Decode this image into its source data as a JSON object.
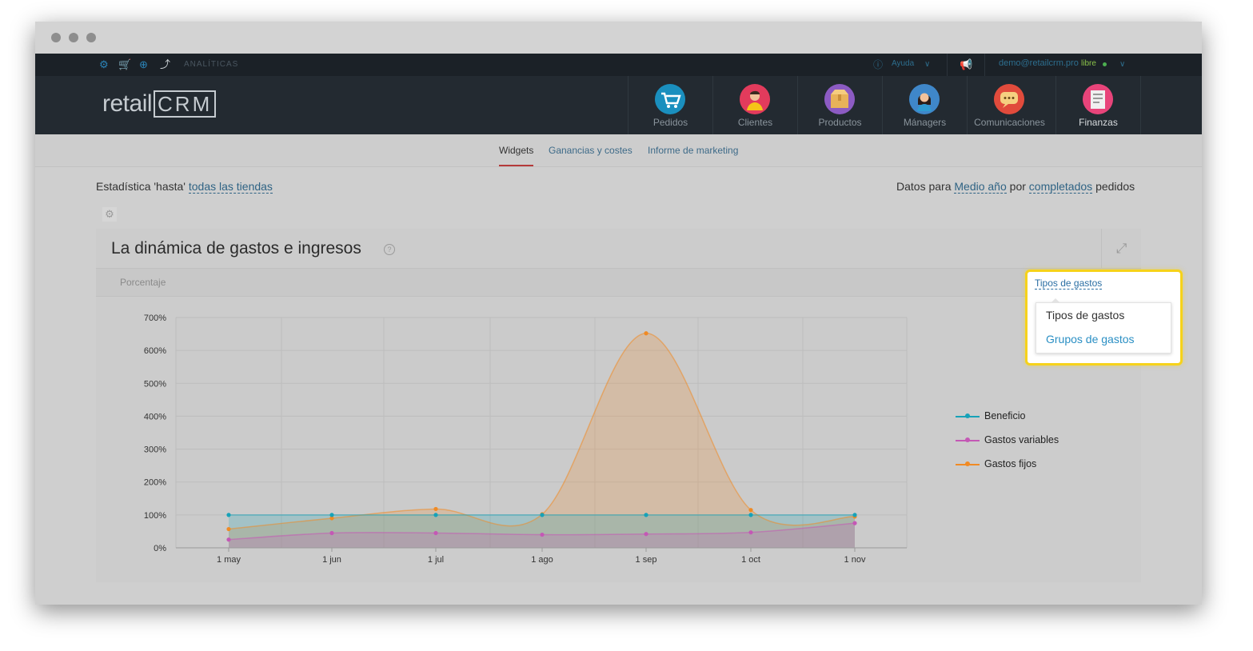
{
  "topbar": {
    "section_label": "ANALÍTICAS",
    "help_label": "Ayuda",
    "user_email": "demo@retailcrm.pro",
    "user_status": "libre"
  },
  "logo": {
    "text_left": "retail",
    "text_right": "CRM"
  },
  "nav": {
    "items": [
      {
        "label": "Pedidos",
        "icon": "cart-icon",
        "color": "#1a8fbe"
      },
      {
        "label": "Clientes",
        "icon": "customer-icon",
        "color": "#e23b5c"
      },
      {
        "label": "Productos",
        "icon": "box-icon",
        "color": "#8c5bc3"
      },
      {
        "label": "Mánagers",
        "icon": "manager-icon",
        "color": "#3f87c9"
      },
      {
        "label": "Comunicaciones",
        "icon": "chat-icon",
        "color": "#e14b3c"
      },
      {
        "label": "Finanzas",
        "icon": "finance-icon",
        "color": "#e8447a"
      }
    ]
  },
  "tabs": [
    "Widgets",
    "Ganancias y costes",
    "Informe de marketing"
  ],
  "stats": {
    "left_prefix": "Estadística 'hasta'",
    "left_link": "todas las tiendas",
    "right_prefix": "Datos para",
    "period_link": "Medio año",
    "by_text": "por",
    "status_link": "completados",
    "suffix": "pedidos"
  },
  "widget": {
    "title": "La dinámica de gastos e ingresos",
    "toolbar_label": "Porcentaje",
    "selector_link": "Tipos de gastos",
    "dropdown_options": [
      "Tipos de gastos",
      "Grupos de gastos"
    ]
  },
  "chart_data": {
    "type": "area",
    "categories": [
      "1 may",
      "1 jun",
      "1 jul",
      "1 ago",
      "1 sep",
      "1 oct",
      "1 nov"
    ],
    "y_ticks": [
      "0%",
      "100%",
      "200%",
      "300%",
      "400%",
      "500%",
      "600%",
      "700%"
    ],
    "ylim": [
      0,
      700
    ],
    "grid": true,
    "legend_position": "right",
    "series": [
      {
        "name": "Beneficio",
        "color": "#17a2b8",
        "values": [
          100,
          100,
          100,
          100,
          100,
          100,
          100
        ]
      },
      {
        "name": "Gastos variables",
        "color": "#c458b5",
        "values": [
          25,
          45,
          45,
          40,
          42,
          47,
          75
        ]
      },
      {
        "name": "Gastos fijos",
        "color": "#f08a24",
        "values": [
          57,
          90,
          118,
          102,
          652,
          115,
          95
        ]
      }
    ]
  }
}
